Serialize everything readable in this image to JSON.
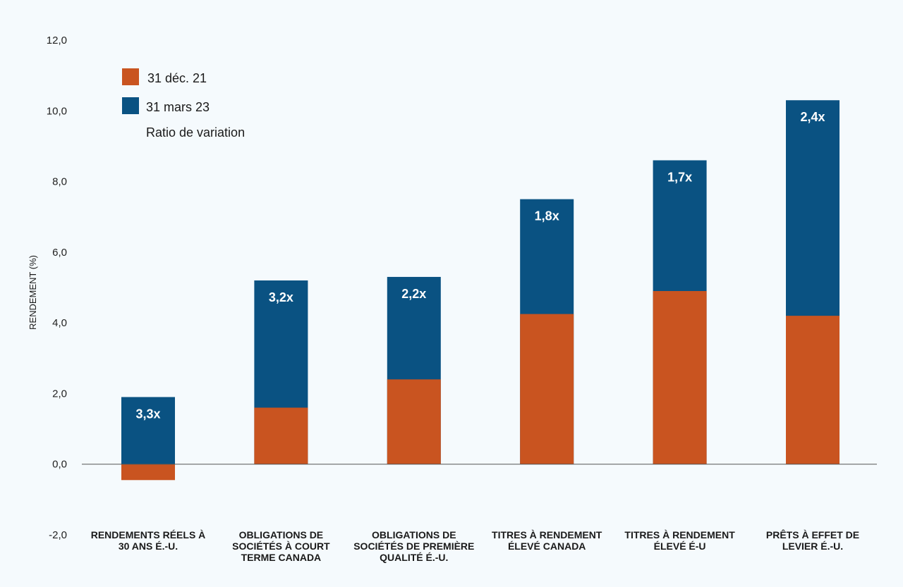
{
  "chart_data": {
    "type": "bar",
    "stacked_overlay": true,
    "title": "",
    "ylabel": "RENDEMENT (%)",
    "xlabel": "",
    "ylim": [
      -2.0,
      12.0
    ],
    "yticks": [
      "12,0",
      "10,0",
      "8,0",
      "6,0",
      "4,0",
      "2,0",
      "0,0",
      "-2,0"
    ],
    "ytick_values": [
      12,
      10,
      8,
      6,
      4,
      2,
      0,
      -2
    ],
    "categories": [
      [
        "RENDEMENTS RÉELS À",
        "30 ANS É.-U."
      ],
      [
        "OBLIGATIONS DE",
        "SOCIÉTÉS À COURT",
        "TERME CANADA"
      ],
      [
        "OBLIGATIONS DE",
        "SOCIÉTÉS DE PREMIÈRE",
        "QUALITÉ É.-U."
      ],
      [
        "TITRES À RENDEMENT",
        "ÉLEVÉ CANADA"
      ],
      [
        "TITRES À RENDEMENT",
        "ÉLEVÉ É-U"
      ],
      [
        "PRÊTS À EFFET DE",
        "LEVIER É.-U."
      ]
    ],
    "series": [
      {
        "name": "31 déc. 21",
        "color": "#c95420",
        "values": [
          -0.45,
          1.6,
          2.4,
          4.25,
          4.9,
          4.2
        ]
      },
      {
        "name": "31 mars 23",
        "color": "#0a5282",
        "values": [
          1.9,
          5.2,
          5.3,
          7.5,
          8.6,
          10.3
        ]
      }
    ],
    "ratios": [
      "3,3x",
      "3,2x",
      "2,2x",
      "1,8x",
      "1,7x",
      "2,4x"
    ],
    "legend": {
      "placement": "top-left",
      "items": [
        "31 déc. 21",
        "31 mars 23",
        "Ratio de variation"
      ]
    }
  }
}
